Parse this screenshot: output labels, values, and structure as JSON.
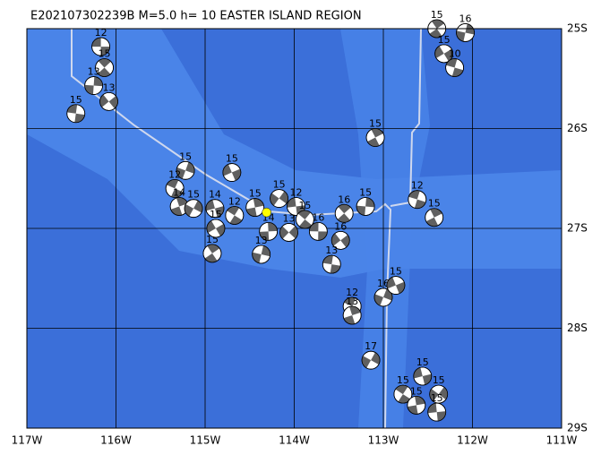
{
  "map": {
    "title": "E202107302239B M=5.0 h= 10 EASTER ISLAND REGION",
    "xlim": [
      -117,
      -111
    ],
    "ylim": [
      -29,
      -25
    ],
    "xticks": [
      {
        "value": -117,
        "label": "117W"
      },
      {
        "value": -116,
        "label": "116W"
      },
      {
        "value": -115,
        "label": "115W"
      },
      {
        "value": -114,
        "label": "114W"
      },
      {
        "value": -113,
        "label": "113W"
      },
      {
        "value": -112,
        "label": "112W"
      },
      {
        "value": -111,
        "label": "111W"
      }
    ],
    "yticks": [
      {
        "value": -25,
        "label": "25S"
      },
      {
        "value": -26,
        "label": "26S"
      },
      {
        "value": -27,
        "label": "27S"
      },
      {
        "value": -28,
        "label": "28S"
      },
      {
        "value": -29,
        "label": "29S"
      }
    ],
    "epicenter": {
      "lon": -114.31,
      "lat": -26.84,
      "color": "#ffff00"
    },
    "events": [
      {
        "lon": -116.17,
        "lat": -25.18,
        "label": "12"
      },
      {
        "lon": -116.13,
        "lat": -25.39,
        "label": "15"
      },
      {
        "lon": -116.25,
        "lat": -25.57,
        "label": "13"
      },
      {
        "lon": -116.08,
        "lat": -25.73,
        "label": "13"
      },
      {
        "lon": -116.45,
        "lat": -25.85,
        "label": "15"
      },
      {
        "lon": -112.4,
        "lat": -25.0,
        "label": "15"
      },
      {
        "lon": -112.08,
        "lat": -25.04,
        "label": "16"
      },
      {
        "lon": -112.32,
        "lat": -25.25,
        "label": "15"
      },
      {
        "lon": -112.2,
        "lat": -25.39,
        "label": "10"
      },
      {
        "lon": -113.09,
        "lat": -26.09,
        "label": "15"
      },
      {
        "lon": -115.22,
        "lat": -26.42,
        "label": "15"
      },
      {
        "lon": -114.7,
        "lat": -26.44,
        "label": "15"
      },
      {
        "lon": -115.34,
        "lat": -26.6,
        "label": "12"
      },
      {
        "lon": -115.29,
        "lat": -26.78,
        "label": "14"
      },
      {
        "lon": -115.13,
        "lat": -26.8,
        "label": "15"
      },
      {
        "lon": -114.89,
        "lat": -26.8,
        "label": "14"
      },
      {
        "lon": -114.67,
        "lat": -26.87,
        "label": "12"
      },
      {
        "lon": -114.44,
        "lat": -26.79,
        "label": "15"
      },
      {
        "lon": -114.17,
        "lat": -26.7,
        "label": "15"
      },
      {
        "lon": -113.98,
        "lat": -26.78,
        "label": "12"
      },
      {
        "lon": -113.88,
        "lat": -26.91,
        "label": "15"
      },
      {
        "lon": -114.29,
        "lat": -27.03,
        "label": "14"
      },
      {
        "lon": -114.06,
        "lat": -27.04,
        "label": "13"
      },
      {
        "lon": -113.73,
        "lat": -27.03,
        "label": "16"
      },
      {
        "lon": -113.44,
        "lat": -26.85,
        "label": "16"
      },
      {
        "lon": -113.2,
        "lat": -26.78,
        "label": "15"
      },
      {
        "lon": -113.48,
        "lat": -27.12,
        "label": "16"
      },
      {
        "lon": -113.58,
        "lat": -27.36,
        "label": "13"
      },
      {
        "lon": -114.92,
        "lat": -27.25,
        "label": "15"
      },
      {
        "lon": -114.37,
        "lat": -27.26,
        "label": "13"
      },
      {
        "lon": -114.88,
        "lat": -27.0,
        "label": "15"
      },
      {
        "lon": -112.62,
        "lat": -26.71,
        "label": "12"
      },
      {
        "lon": -112.43,
        "lat": -26.89,
        "label": "15"
      },
      {
        "lon": -113.0,
        "lat": -27.69,
        "label": "16"
      },
      {
        "lon": -112.86,
        "lat": -27.57,
        "label": "15"
      },
      {
        "lon": -113.35,
        "lat": -27.78,
        "label": "12"
      },
      {
        "lon": -113.35,
        "lat": -27.87,
        "label": "13"
      },
      {
        "lon": -113.14,
        "lat": -28.32,
        "label": "17"
      },
      {
        "lon": -112.56,
        "lat": -28.48,
        "label": "15"
      },
      {
        "lon": -112.78,
        "lat": -28.66,
        "label": "15"
      },
      {
        "lon": -112.63,
        "lat": -28.77,
        "label": "15"
      },
      {
        "lon": -112.38,
        "lat": -28.66,
        "label": "15"
      },
      {
        "lon": -112.4,
        "lat": -28.84,
        "label": "15"
      }
    ]
  }
}
